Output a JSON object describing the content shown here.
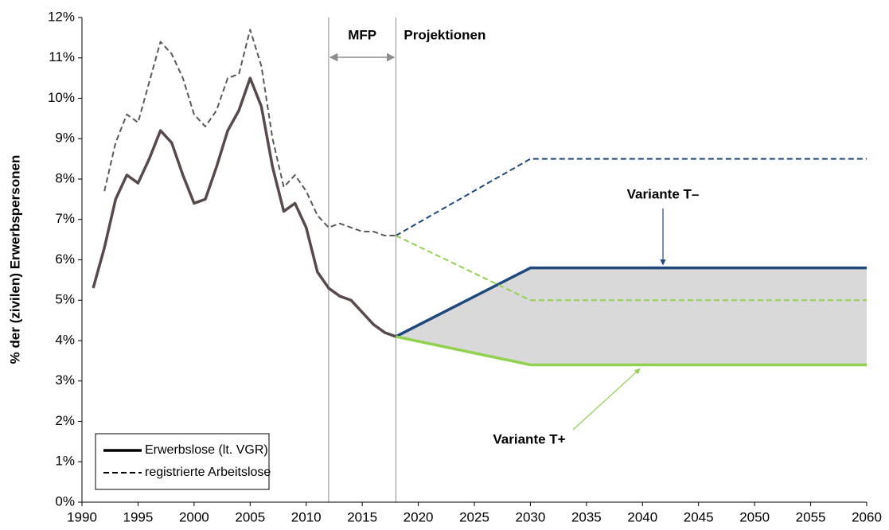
{
  "chart_data": {
    "type": "line",
    "y_label": "% der (zivilen) Erwerbspersonen",
    "xlim": [
      1990,
      2060
    ],
    "xticks": [
      1990,
      1995,
      2000,
      2005,
      2010,
      2015,
      2020,
      2025,
      2030,
      2035,
      2040,
      2045,
      2050,
      2055,
      2060
    ],
    "ylim": [
      0,
      12
    ],
    "yticks": [
      {
        "value": 0,
        "label": "0%"
      },
      {
        "value": 1,
        "label": "1%"
      },
      {
        "value": 2,
        "label": "2%"
      },
      {
        "value": 3,
        "label": "3%"
      },
      {
        "value": 4,
        "label": "4%"
      },
      {
        "value": 5,
        "label": "5%"
      },
      {
        "value": 6,
        "label": "6%"
      },
      {
        "value": 7,
        "label": "7%"
      },
      {
        "value": 8,
        "label": "8%"
      },
      {
        "value": 9,
        "label": "9%"
      },
      {
        "value": 10,
        "label": "10%"
      },
      {
        "value": 11,
        "label": "11%"
      },
      {
        "value": 12,
        "label": "12%"
      }
    ],
    "grid": false,
    "legend": "lower left",
    "vlines": [
      2012,
      2018
    ],
    "period_labels": [
      "MFP",
      "Projektionen"
    ],
    "annotations": [
      "Variante T–",
      "Variante T+"
    ],
    "annotation_colors": [
      "#1f497d",
      "#92d050"
    ],
    "fill_between": [
      2,
      3
    ],
    "fill_color": "#d9d9d9",
    "series": [
      {
        "name": "Erwerbslose (lt. VGR)",
        "color": "#594a4a",
        "dashed": false,
        "width": 3.5,
        "x": [
          1991,
          1992,
          1993,
          1994,
          1995,
          1996,
          1997,
          1998,
          1999,
          2000,
          2001,
          2002,
          2003,
          2004,
          2005,
          2006,
          2007,
          2008,
          2009,
          2010,
          2011,
          2012,
          2013,
          2014,
          2015,
          2016,
          2017,
          2018
        ],
        "values": [
          5.3,
          6.3,
          7.5,
          8.1,
          7.9,
          8.5,
          9.2,
          8.9,
          8.1,
          7.4,
          7.5,
          8.3,
          9.2,
          9.7,
          10.5,
          9.8,
          8.3,
          7.2,
          7.4,
          6.8,
          5.7,
          5.3,
          5.1,
          5.0,
          4.7,
          4.4,
          4.2,
          4.1
        ]
      },
      {
        "name": "registrierte Arbeitslose",
        "color": "#595959",
        "dashed": true,
        "width": 2,
        "x": [
          1992,
          1993,
          1994,
          1995,
          1996,
          1997,
          1998,
          1999,
          2000,
          2001,
          2002,
          2003,
          2004,
          2005,
          2006,
          2007,
          2008,
          2009,
          2010,
          2011,
          2012,
          2013,
          2014,
          2015,
          2016,
          2017,
          2018
        ],
        "values": [
          7.7,
          8.9,
          9.6,
          9.4,
          10.4,
          11.4,
          11.1,
          10.5,
          9.6,
          9.3,
          9.7,
          10.5,
          10.6,
          11.7,
          10.8,
          9.0,
          7.8,
          8.1,
          7.7,
          7.1,
          6.8,
          6.9,
          6.8,
          6.7,
          6.7,
          6.6,
          6.6
        ]
      },
      {
        "color": "#1f497d",
        "dashed": false,
        "width": 3.5,
        "x": [
          2018,
          2030,
          2060
        ],
        "values": [
          4.1,
          5.8,
          5.8
        ]
      },
      {
        "color": "#92d050",
        "dashed": false,
        "width": 3.5,
        "x": [
          2018,
          2030,
          2060
        ],
        "values": [
          4.1,
          3.4,
          3.4
        ]
      },
      {
        "color": "#1f497d",
        "dashed": true,
        "width": 2,
        "x": [
          2018,
          2030,
          2060
        ],
        "values": [
          6.6,
          8.5,
          8.5
        ]
      },
      {
        "color": "#92d050",
        "dashed": true,
        "width": 2,
        "x": [
          2018,
          2030,
          2060
        ],
        "values": [
          6.6,
          5.0,
          5.0
        ]
      }
    ]
  }
}
